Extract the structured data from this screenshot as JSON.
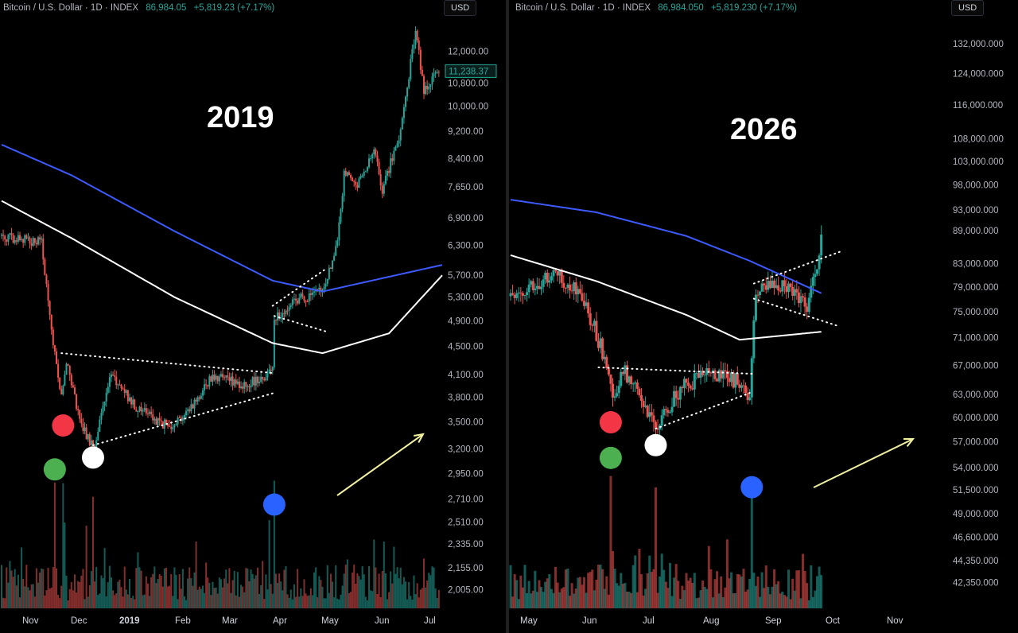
{
  "colors": {
    "up": "#26a69a",
    "down": "#ef5350",
    "ma_blue": "#3d5afe",
    "ma_white": "#ffffff",
    "marker_red": "#f23645",
    "marker_green": "#4caf50",
    "marker_white": "#ffffff",
    "marker_blue": "#2962ff",
    "arrow": "#f0f0a0"
  },
  "left": {
    "header": {
      "symbol": "Bitcoin / U.S. Dollar · 1D · INDEX",
      "price": "86,984.05",
      "change": "+5,819.23 (+7.17%)"
    },
    "currency": "USD",
    "last_price_label": "11,238.37",
    "annotation_year": "2019",
    "y_ticks": [
      "12,000.00",
      "10,800.00",
      "10,000.00",
      "9,200.00",
      "8,400.00",
      "7,650.00",
      "6,900.00",
      "6,300.00",
      "5,700.00",
      "5,300.00",
      "4,900.00",
      "4,500.00",
      "4,100.00",
      "3,800.00",
      "3,500.00",
      "3,200.00",
      "2,950.00",
      "2,710.00",
      "2,510.00",
      "2,335.00",
      "2,155.00",
      "2,005.00"
    ],
    "x_ticks": [
      {
        "label": "Nov",
        "bold": false
      },
      {
        "label": "Dec",
        "bold": false
      },
      {
        "label": "2019",
        "bold": true
      },
      {
        "label": "Feb",
        "bold": false
      },
      {
        "label": "Mar",
        "bold": false
      },
      {
        "label": "Apr",
        "bold": false
      },
      {
        "label": "May",
        "bold": false
      },
      {
        "label": "Jun",
        "bold": false
      },
      {
        "label": "Jul",
        "bold": false
      }
    ]
  },
  "right": {
    "header": {
      "symbol": "Bitcoin / U.S. Dollar · 1D · INDEX",
      "price": "86,984.050",
      "change": "+5,819.230 (+7.17%)"
    },
    "currency": "USD",
    "annotation_year": "2026",
    "y_ticks": [
      "132,000.000",
      "124,000.000",
      "116,000.000",
      "108,000.000",
      "103,000.000",
      "98,000.000",
      "93,000.000",
      "89,000.000",
      "83,000.000",
      "79,000.000",
      "75,000.000",
      "71,000.000",
      "67,000.000",
      "63,000.000",
      "60,000.000",
      "57,000.000",
      "54,000.000",
      "51,500.000",
      "49,000.000",
      "46,600.000",
      "44,350.000",
      "42,350.000"
    ],
    "x_ticks": [
      {
        "label": "May",
        "bold": false
      },
      {
        "label": "Jun",
        "bold": false
      },
      {
        "label": "Jul",
        "bold": false
      },
      {
        "label": "Aug",
        "bold": false
      },
      {
        "label": "Sep",
        "bold": false
      },
      {
        "label": "Oct",
        "bold": false
      },
      {
        "label": "Nov",
        "bold": false
      }
    ]
  },
  "chart_data": [
    {
      "type": "candlestick",
      "xlabel": "",
      "ylabel": "",
      "log_scale": true,
      "ylim": [
        1950,
        13500
      ],
      "x_range": [
        "2018-10-20",
        "2019-07-12"
      ],
      "price_path": [
        [
          "2018-10-20",
          6500
        ],
        [
          "2018-11-13",
          6350
        ],
        [
          "2018-11-20",
          4500
        ],
        [
          "2018-11-25",
          3800
        ],
        [
          "2018-11-28",
          4300
        ],
        [
          "2018-12-07",
          3450
        ],
        [
          "2018-12-15",
          3200
        ],
        [
          "2018-12-24",
          4100
        ],
        [
          "2019-01-10",
          3650
        ],
        [
          "2019-01-28",
          3450
        ],
        [
          "2019-02-08",
          3600
        ],
        [
          "2019-02-24",
          4100
        ],
        [
          "2019-03-15",
          3950
        ],
        [
          "2019-04-01",
          4150
        ],
        [
          "2019-04-02",
          4900
        ],
        [
          "2019-04-15",
          5250
        ],
        [
          "2019-05-01",
          5400
        ],
        [
          "2019-05-10",
          6300
        ],
        [
          "2019-05-14",
          8000
        ],
        [
          "2019-05-22",
          7700
        ],
        [
          "2019-06-01",
          8600
        ],
        [
          "2019-06-06",
          7600
        ],
        [
          "2019-06-16",
          9000
        ],
        [
          "2019-06-26",
          12800
        ],
        [
          "2019-07-01",
          10600
        ],
        [
          "2019-07-10",
          11238
        ]
      ],
      "ma_blue": [
        [
          "2018-10-20",
          8800
        ],
        [
          "2018-12-01",
          7950
        ],
        [
          "2019-02-01",
          6600
        ],
        [
          "2019-04-01",
          5600
        ],
        [
          "2019-05-01",
          5400
        ],
        [
          "2019-07-12",
          5900
        ]
      ],
      "ma_white": [
        [
          "2018-10-20",
          7300
        ],
        [
          "2018-12-01",
          6450
        ],
        [
          "2019-02-01",
          5300
        ],
        [
          "2019-04-01",
          4550
        ],
        [
          "2019-05-01",
          4400
        ],
        [
          "2019-06-10",
          4700
        ],
        [
          "2019-07-12",
          5700
        ]
      ],
      "trendlines": [
        {
          "style": "dotted",
          "points": [
            [
              "2018-11-25",
              4400
            ],
            [
              "2019-04-01",
              4120
            ]
          ]
        },
        {
          "style": "dotted",
          "points": [
            [
              "2018-12-14",
              3240
            ],
            [
              "2019-04-01",
              3850
            ]
          ]
        },
        {
          "style": "dotted",
          "points": [
            [
              "2019-04-01",
              5150
            ],
            [
              "2019-05-02",
              5800
            ]
          ]
        },
        {
          "style": "dotted",
          "points": [
            [
              "2019-04-02",
              4980
            ],
            [
              "2019-05-03",
              4730
            ]
          ]
        }
      ],
      "markers": [
        {
          "color": "red",
          "date": "2018-11-26",
          "value": 3460
        },
        {
          "color": "green",
          "date": "2018-11-21",
          "value": 2990
        },
        {
          "color": "white",
          "date": "2018-12-14",
          "value": 3110
        },
        {
          "color": "blue",
          "date": "2019-04-02",
          "value": 2660
        }
      ]
    },
    {
      "type": "candlestick",
      "xlabel": "",
      "ylabel": "",
      "log_scale": true,
      "ylim": [
        41000,
        140000
      ],
      "x_range": [
        "2026-04-20",
        "2026-11-20"
      ],
      "price_path": [
        [
          "2026-04-20",
          77500
        ],
        [
          "2026-05-05",
          79500
        ],
        [
          "2026-05-12",
          81500
        ],
        [
          "2026-05-26",
          77000
        ],
        [
          "2026-06-05",
          68000
        ],
        [
          "2026-06-09",
          62500
        ],
        [
          "2026-06-14",
          66500
        ],
        [
          "2026-06-20",
          64000
        ],
        [
          "2026-06-30",
          58500
        ],
        [
          "2026-07-12",
          63800
        ],
        [
          "2026-07-28",
          66000
        ],
        [
          "2026-08-10",
          64500
        ],
        [
          "2026-08-15",
          63000
        ],
        [
          "2026-08-16",
          68500
        ],
        [
          "2026-08-18",
          78500
        ],
        [
          "2026-08-27",
          79500
        ],
        [
          "2026-09-05",
          78500
        ],
        [
          "2026-09-12",
          76000
        ],
        [
          "2026-09-16",
          80500
        ],
        [
          "2026-09-19",
          86984
        ]
      ],
      "ma_blue": [
        [
          "2026-04-20",
          95000
        ],
        [
          "2026-06-01",
          92500
        ],
        [
          "2026-07-15",
          88000
        ],
        [
          "2026-08-15",
          83500
        ],
        [
          "2026-09-19",
          78000
        ]
      ],
      "ma_white": [
        [
          "2026-04-20",
          84500
        ],
        [
          "2026-06-01",
          80000
        ],
        [
          "2026-07-15",
          74500
        ],
        [
          "2026-08-10",
          70700
        ],
        [
          "2026-09-19",
          71900
        ]
      ],
      "trendlines": [
        {
          "style": "dotted",
          "points": [
            [
              "2026-06-02",
              66700
            ],
            [
              "2026-08-16",
              65800
            ]
          ]
        },
        {
          "style": "dotted",
          "points": [
            [
              "2026-06-30",
              58600
            ],
            [
              "2026-08-15",
              63200
            ]
          ]
        },
        {
          "style": "dotted",
          "points": [
            [
              "2026-08-17",
              79600
            ],
            [
              "2026-09-28",
              85100
            ]
          ]
        },
        {
          "style": "dotted",
          "points": [
            [
              "2026-08-17",
              77100
            ],
            [
              "2026-09-28",
              72700
            ]
          ]
        }
      ],
      "markers": [
        {
          "color": "red",
          "date": "2026-06-08",
          "value": 59400
        },
        {
          "color": "green",
          "date": "2026-06-08",
          "value": 55100
        },
        {
          "color": "white",
          "date": "2026-06-30",
          "value": 56600
        },
        {
          "color": "blue",
          "date": "2026-08-16",
          "value": 51800
        }
      ]
    }
  ]
}
